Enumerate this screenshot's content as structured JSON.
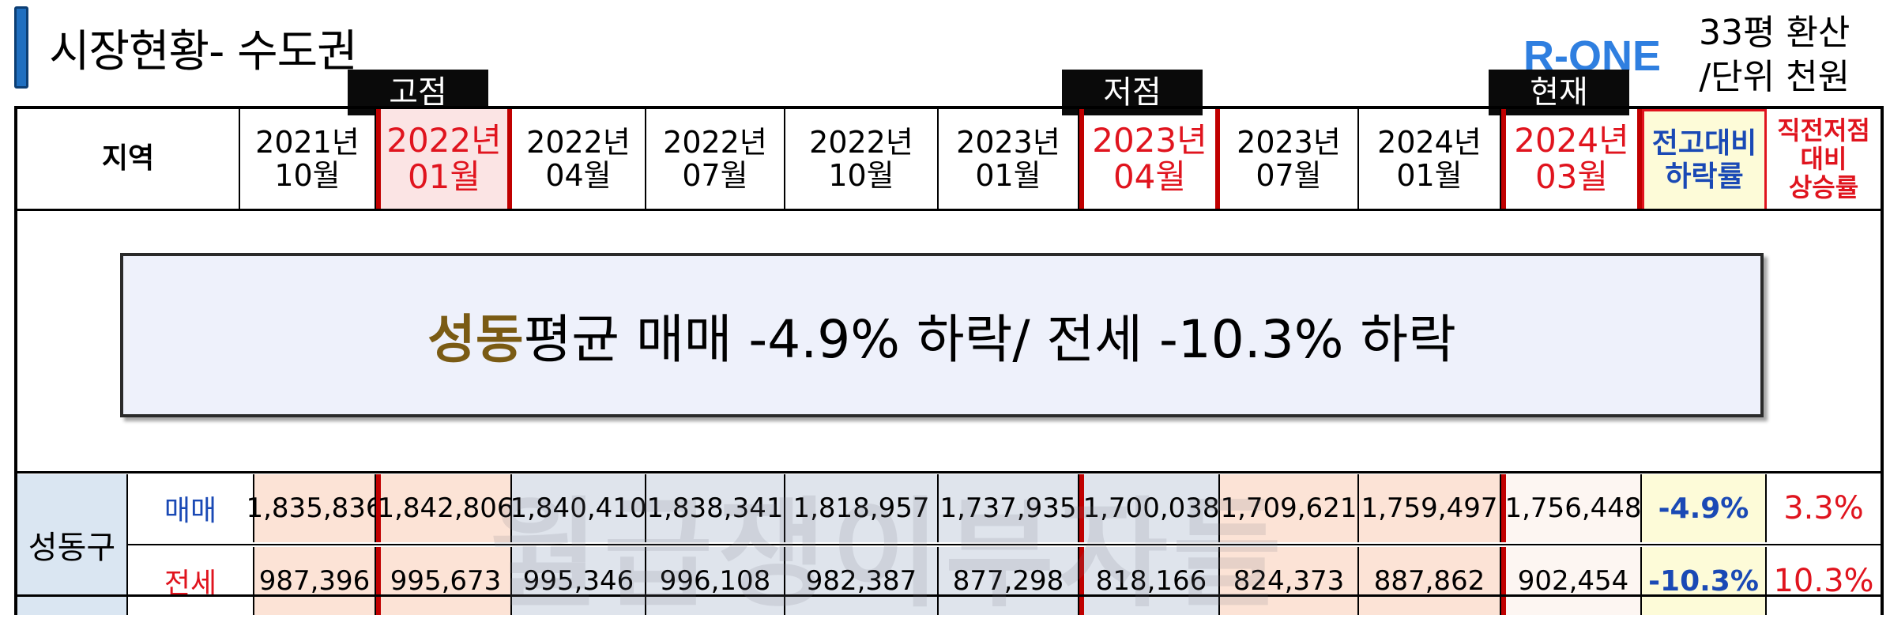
{
  "title": "시장현황- 수도권",
  "logo_text": "R-ONE",
  "unit_line1": "33평 환산",
  "unit_line2": "/단위 천원",
  "tags": {
    "peak": "고점",
    "low": "저점",
    "now": "현재"
  },
  "header": {
    "region": "지역",
    "periods": [
      {
        "y": "2021년",
        "m": "10월"
      },
      {
        "y": "2022년",
        "m": "01월"
      },
      {
        "y": "2022년",
        "m": "04월"
      },
      {
        "y": "2022년",
        "m": "07월"
      },
      {
        "y": "2022년",
        "m": "10월"
      },
      {
        "y": "2023년",
        "m": "01월"
      },
      {
        "y": "2023년",
        "m": "04월"
      },
      {
        "y": "2023년",
        "m": "07월"
      },
      {
        "y": "2024년",
        "m": "01월"
      },
      {
        "y": "2024년",
        "m": "03월"
      }
    ],
    "drop_col_l1": "전고대비",
    "drop_col_l2": "하락률",
    "rise_col_l1": "직전저점",
    "rise_col_l2": "대비",
    "rise_col_l3": "상승률"
  },
  "banner": {
    "region": "성동",
    "text": " 평균 매매  -4.9% 하락/ 전세 -10.3% 하락"
  },
  "watermark": "월급쟁이부자들",
  "table": {
    "region": "성동구",
    "rows": [
      {
        "kind": "매매",
        "values": [
          "1,835,836",
          "1,842,806",
          "1,840,410",
          "1,838,341",
          "1,818,957",
          "1,737,935",
          "1,700,038",
          "1,709,621",
          "1,759,497",
          "1,756,448"
        ],
        "drop": "-4.9%",
        "rise": "3.3%"
      },
      {
        "kind": "전세",
        "values": [
          "987,396",
          "995,673",
          "995,346",
          "996,108",
          "982,387",
          "877,298",
          "818,166",
          "824,373",
          "887,862",
          "902,454"
        ],
        "drop": "-10.3%",
        "rise": "10.3%"
      }
    ]
  },
  "colors": {
    "accent_red": "#e0141e",
    "accent_blue": "#1a49b5",
    "banner_region": "#7a5b14",
    "title_bar": "#1f6fc0"
  }
}
